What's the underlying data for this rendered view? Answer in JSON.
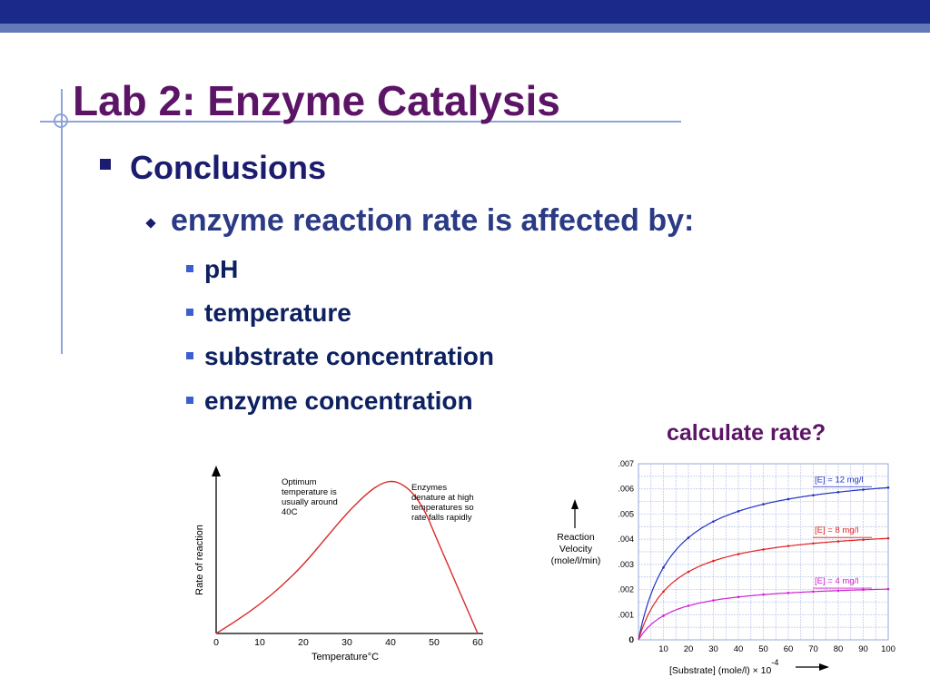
{
  "slide": {
    "title": "Lab 2: Enzyme Catalysis",
    "level1": "Conclusions",
    "level2": "enzyme reaction rate is affected by:",
    "level3": [
      "pH",
      "temperature",
      "substrate concentration",
      "enzyme concentration"
    ],
    "callout": "calculate rate?",
    "theme": {
      "title_color": "#5c1466",
      "text_color": "#1b1c6e",
      "bar_color": "#1b2a8a",
      "guide_color": "#8ea4d8"
    }
  },
  "chart_data": [
    {
      "type": "line",
      "xlabel": "Temperature°C",
      "ylabel": "Rate of reaction",
      "x_ticks": [
        "0",
        "10",
        "20",
        "30",
        "40",
        "50",
        "60"
      ],
      "xlim": [
        0,
        60
      ],
      "ylim": [
        0,
        1
      ],
      "series": [
        {
          "x": [
            0,
            5,
            10,
            15,
            20,
            25,
            30,
            35,
            38,
            40,
            42,
            45,
            48,
            50,
            55,
            60
          ],
          "values": [
            0.0,
            0.09,
            0.19,
            0.31,
            0.45,
            0.62,
            0.79,
            0.93,
            0.985,
            1.0,
            0.99,
            0.93,
            0.8,
            0.66,
            0.33,
            0.0
          ]
        }
      ],
      "color": "#d92b2b",
      "annotations": [
        {
          "text": [
            "Optimum",
            "temperature is",
            "usually around",
            "40C"
          ]
        },
        {
          "text": [
            "Enzymes",
            "denature at high",
            "temperatures so",
            "rate falls rapidly"
          ]
        }
      ]
    },
    {
      "type": "line",
      "ylabel": [
        "Reaction",
        "Velocity",
        "(mole/l/min)"
      ],
      "xlabel": "[Substrate] (mole/l) × 10",
      "xlabel_exponent": "-4",
      "x_ticks": [
        "0",
        "10",
        "20",
        "30",
        "40",
        "50",
        "60",
        "70",
        "80",
        "90",
        "100"
      ],
      "y_ticks": [
        "0",
        ".001",
        ".002",
        ".003",
        ".004",
        ".005",
        ".006",
        ".007"
      ],
      "xlim": [
        0,
        100
      ],
      "ylim": [
        0,
        0.007
      ],
      "series": [
        {
          "name": "[E] = 12 mg/l",
          "color": "#2030c0",
          "vmax": 0.0069,
          "km": 14
        },
        {
          "name": "[E] = 8 mg/l",
          "color": "#e02020",
          "vmax": 0.0046,
          "km": 14
        },
        {
          "name": "[E] = 4 mg/l",
          "color": "#d020d0",
          "vmax": 0.0023,
          "km": 14
        }
      ],
      "x": [
        0,
        1,
        2,
        4,
        6,
        8,
        10,
        15,
        20,
        25,
        30,
        40,
        50,
        60,
        70,
        80,
        90,
        100
      ]
    }
  ]
}
